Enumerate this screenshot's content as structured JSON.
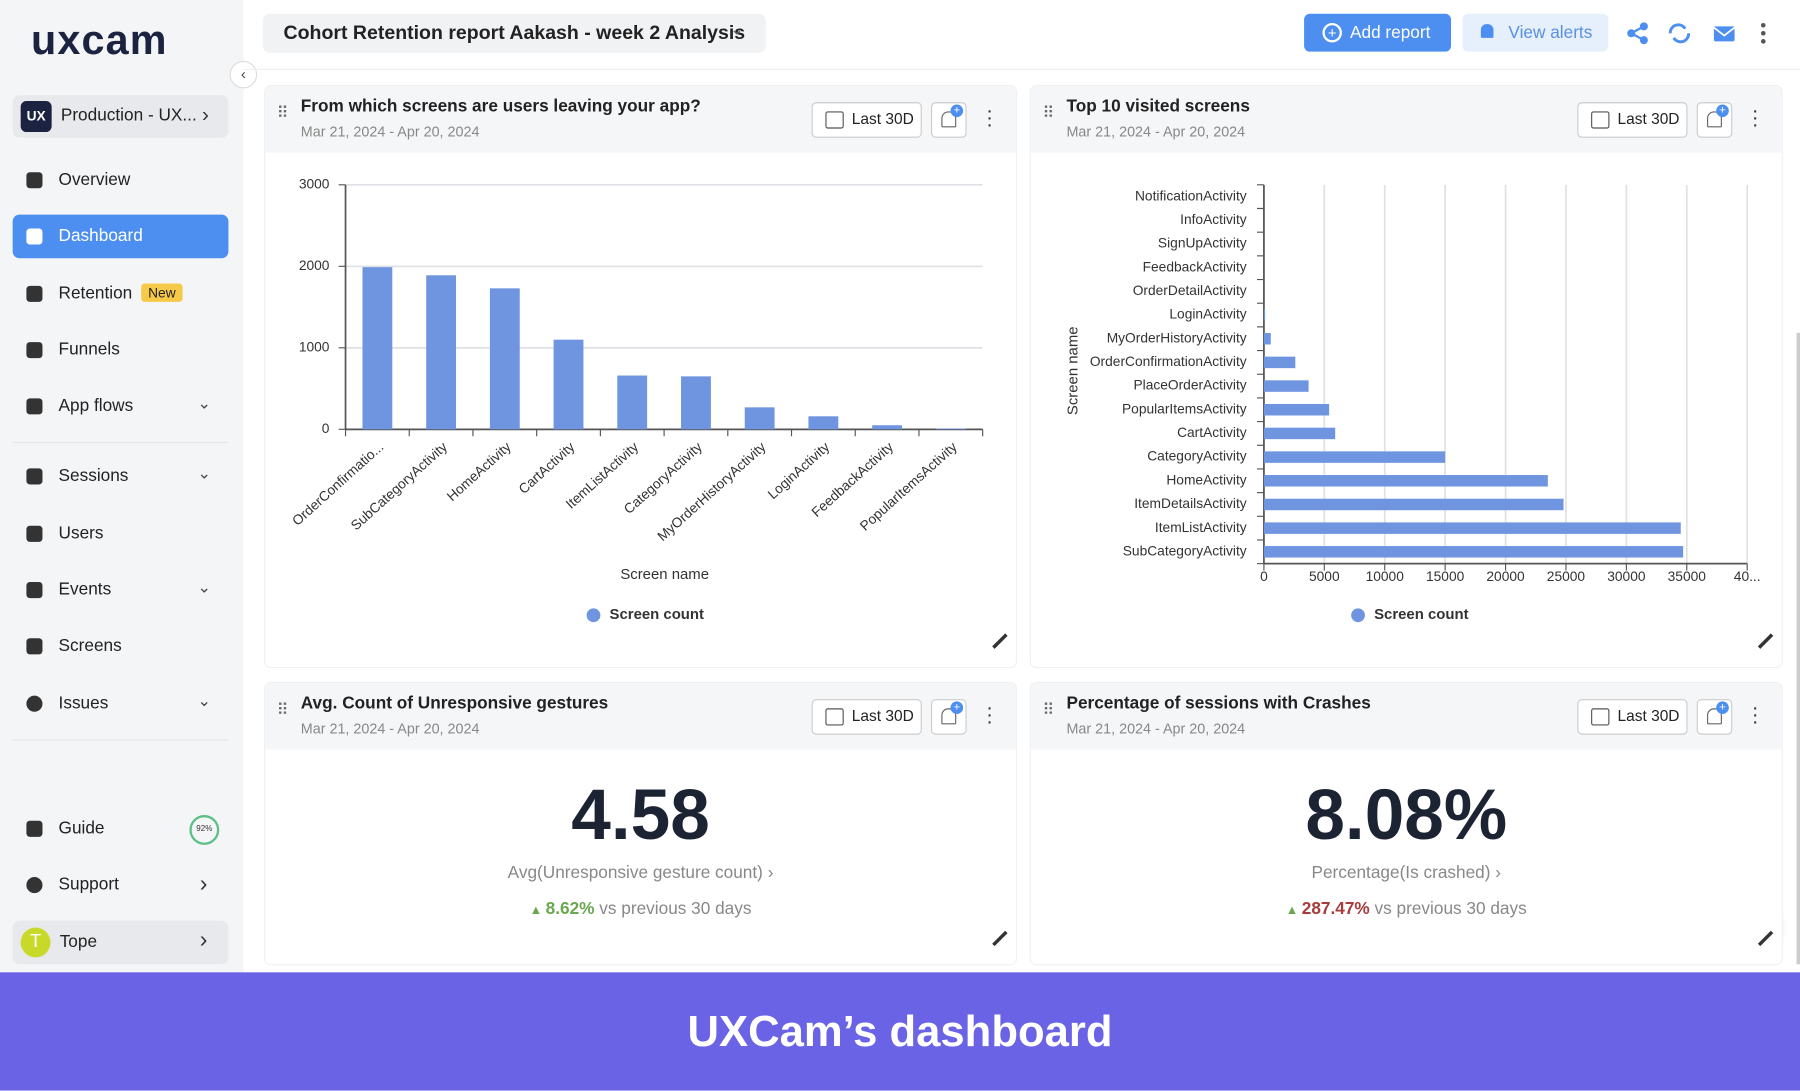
{
  "sidebar": {
    "logo": "uxcam",
    "project": "Production - UX...",
    "project_icon": "UX",
    "nav": [
      {
        "label": "Overview"
      },
      {
        "label": "Dashboard"
      },
      {
        "label": "Retention",
        "badge": "New"
      },
      {
        "label": "Funnels"
      },
      {
        "label": "App flows"
      },
      {
        "label": "Sessions"
      },
      {
        "label": "Users"
      },
      {
        "label": "Events"
      },
      {
        "label": "Screens"
      },
      {
        "label": "Issues"
      },
      {
        "label": "Guide",
        "badge": "92%"
      },
      {
        "label": "Support"
      }
    ],
    "user": {
      "initial": "T",
      "name": "Tope"
    }
  },
  "header": {
    "report_title": "Cohort Retention report Aakash - week 2 Analysis",
    "add_report": "Add report",
    "view_alerts": "View alerts"
  },
  "widgets": [
    {
      "title": "From which screens are users leaving your app?",
      "date_range": "Mar 21, 2024 - Apr 20, 2024",
      "period": "Last 30D"
    },
    {
      "title": "Top 10 visited screens",
      "date_range": "Mar 21, 2024 - Apr 20, 2024",
      "period": "Last 30D"
    },
    {
      "title": "Avg. Count of Unresponsive gestures",
      "date_range": "Mar 21, 2024 - Apr 20, 2024",
      "period": "Last 30D"
    },
    {
      "title": "Percentage of sessions with Crashes",
      "date_range": "Mar 21, 2024 - Apr 20, 2024",
      "period": "Last 30D"
    }
  ],
  "chart_data": [
    {
      "type": "bar",
      "x_label": "Screen name",
      "categories": [
        "OrderConfirmatio...",
        "SubCategoryActivity",
        "HomeActivity",
        "CartActivity",
        "ItemListActivity",
        "CategoryActivity",
        "MyOrderHistoryActivity",
        "LoginActivity",
        "FeedbackActivity",
        "PopularItemsActivity"
      ],
      "series": [
        {
          "name": "Screen count",
          "color": "#6f95e0",
          "values": [
            1990,
            1890,
            1730,
            1100,
            660,
            650,
            270,
            160,
            50,
            10
          ]
        }
      ],
      "ylim": [
        0,
        3000
      ],
      "yticks": [
        0,
        1000,
        2000,
        3000
      ],
      "grid": true
    },
    {
      "type": "bar",
      "horizontal": true,
      "y_label": "Screen name",
      "categories": [
        "NotificationActivity",
        "InfoActivity",
        "SignUpActivity",
        "FeedbackActivity",
        "OrderDetailActivity",
        "LoginActivity",
        "MyOrderHistoryActivity",
        "OrderConfirmationActivity",
        "PlaceOrderActivity",
        "PopularItemsActivity",
        "CartActivity",
        "CategoryActivity",
        "HomeActivity",
        "ItemDetailsActivity",
        "ItemListActivity",
        "SubCategoryActivity"
      ],
      "series": [
        {
          "name": "Screen count",
          "color": "#6f95e0",
          "values": [
            0,
            0,
            0,
            0,
            0,
            100,
            570,
            2600,
            3700,
            5400,
            5900,
            15000,
            23500,
            24800,
            34500,
            34700
          ]
        }
      ],
      "xlim": [
        0,
        40000
      ],
      "xticks": [
        0,
        5000,
        10000,
        15000,
        20000,
        25000,
        30000,
        35000,
        {
          "value": 40000,
          "label": "40..."
        }
      ],
      "grid": true
    }
  ],
  "metrics": [
    {
      "value": "4.58",
      "label": "Avg(Unresponsive gesture count)",
      "change": "8.62%",
      "comparison": "vs previous 30 days"
    },
    {
      "value": "8.08%",
      "label": "Percentage(Is crashed)",
      "change": "287.47%",
      "comparison": "vs previous 30 days"
    }
  ],
  "caption": "UXCam’s dashboard"
}
